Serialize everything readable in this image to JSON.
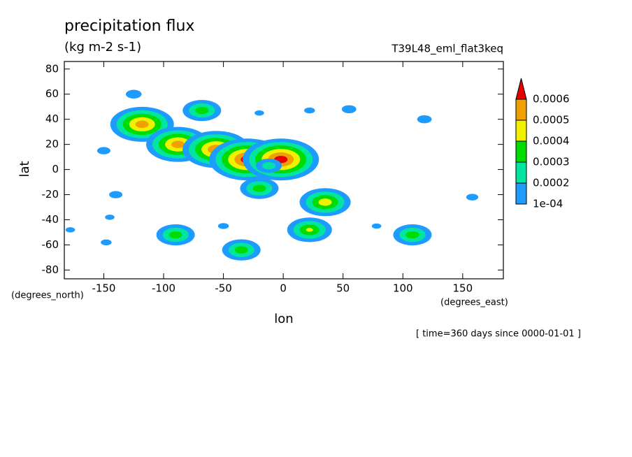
{
  "chart_data": {
    "type": "contour",
    "title": "precipitation flux",
    "subtitle": "(kg m-2 s-1)",
    "annotation": "T39L48_eml_flat3keq",
    "xlabel": "lon",
    "ylabel": "lat",
    "x_units": "(degrees_east)",
    "y_units": "(degrees_north)",
    "footer": "[ time=360 days since 0000-01-01 ]",
    "xlim": [
      -183,
      184
    ],
    "ylim": [
      -87,
      86
    ],
    "xticks": [
      -150,
      -100,
      -50,
      0,
      50,
      100,
      150
    ],
    "yticks": [
      -80,
      -60,
      -40,
      -20,
      0,
      20,
      40,
      60,
      80
    ],
    "levels": [
      {
        "value": 0.0001,
        "label": "1e-04"
      },
      0.0002,
      0.0003,
      0.0004,
      0.0005,
      0.0006
    ],
    "colors": [
      "#1e9bff",
      "#00e6a0",
      "#00dc00",
      "#f0f000",
      "#f0a000",
      "#e60000"
    ],
    "x": [
      -118,
      -88,
      -56,
      -30,
      -2,
      -68,
      -20,
      35,
      22,
      -90,
      -35,
      108,
      -12,
      -125,
      55,
      118,
      -150,
      -140,
      -50,
      22,
      -148,
      158,
      -20,
      78,
      -145,
      -178
    ],
    "y": [
      36,
      20,
      16,
      8,
      8,
      47,
      -15,
      -26,
      -48,
      -52,
      -64,
      -52,
      3,
      60,
      48,
      40,
      15,
      -20,
      -45,
      47,
      -58,
      -22,
      45,
      -45,
      -38,
      -48
    ],
    "values": [
      0.00055,
      0.00055,
      0.00058,
      0.00065,
      0.00065,
      0.00035,
      0.00035,
      0.00045,
      0.0004,
      0.00035,
      0.00035,
      0.00035,
      0.00025,
      0.00017,
      0.00016,
      0.00016,
      0.00015,
      0.00015,
      0.00013,
      0.00013,
      0.00013,
      0.00014,
      0.00012,
      0.00012,
      0.00012,
      0.00012
    ]
  }
}
